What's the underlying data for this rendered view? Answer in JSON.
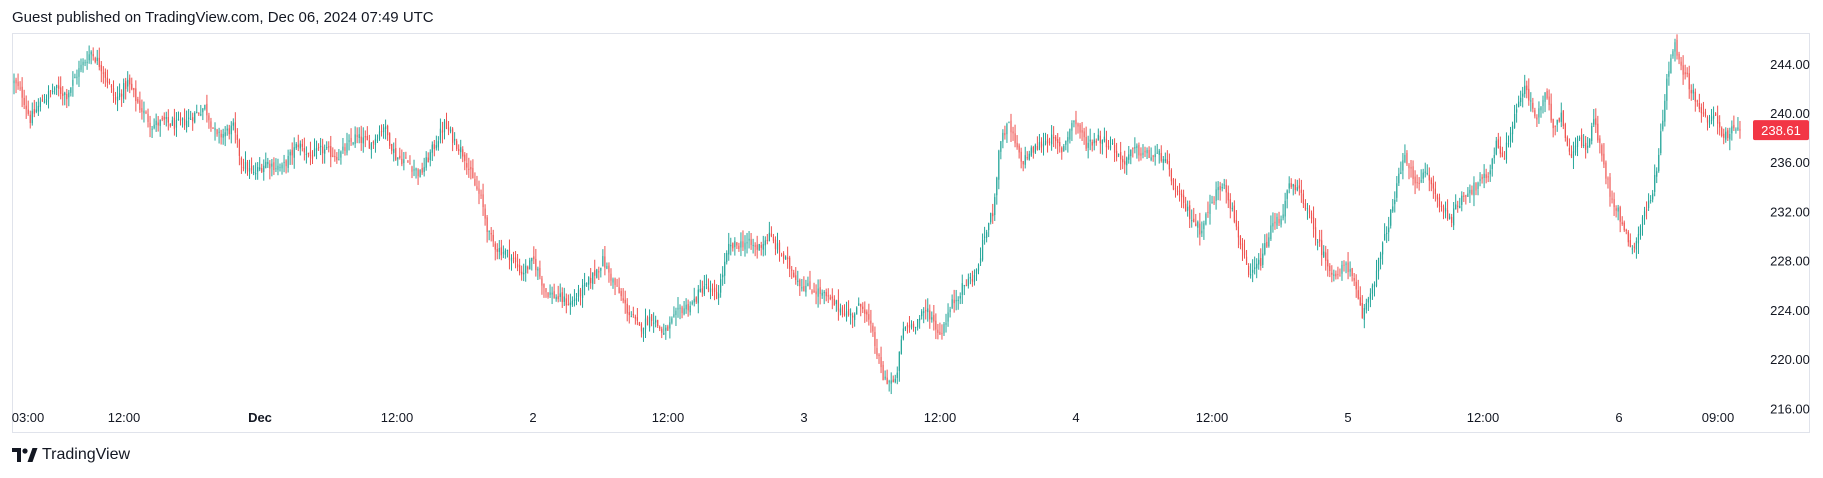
{
  "header": {
    "text": "Guest published on TradingView.com, Dec 06, 2024 07:49 UTC"
  },
  "footer": {
    "brand": "TradingView"
  },
  "colors": {
    "up": "#26a69a",
    "down": "#ef5350",
    "price_badge": "#f23645",
    "border": "#e0e3eb",
    "text": "#131722"
  },
  "chart_data": {
    "type": "candlestick",
    "title": "",
    "xlabel": "",
    "ylabel": "",
    "ylim": [
      214,
      246.5
    ],
    "y_ticks": [
      "244.00",
      "240.00",
      "236.00",
      "232.00",
      "228.00",
      "224.00",
      "220.00",
      "216.00"
    ],
    "x_ticks": [
      "03:00",
      "12:00",
      "Dec",
      "12:00",
      "2",
      "12:00",
      "3",
      "12:00",
      "4",
      "12:00",
      "5",
      "12:00",
      "6",
      "09:00"
    ],
    "last_price": "238.61",
    "grid": false,
    "series": [
      {
        "close_path": [
          [
            0,
            242.5
          ],
          [
            4,
            241.5
          ],
          [
            8,
            239.5
          ],
          [
            14,
            241.0
          ],
          [
            20,
            242.0
          ],
          [
            26,
            241.5
          ],
          [
            32,
            243.5
          ],
          [
            38,
            245.0
          ],
          [
            44,
            243.5
          ],
          [
            50,
            241.0
          ],
          [
            56,
            242.5
          ],
          [
            62,
            240.5
          ],
          [
            68,
            239.0
          ],
          [
            74,
            239.3
          ],
          [
            80,
            239.0
          ],
          [
            86,
            239.5
          ],
          [
            94,
            240.5
          ],
          [
            100,
            238.0
          ],
          [
            108,
            238.8
          ],
          [
            112,
            236.0
          ],
          [
            118,
            235.0
          ],
          [
            124,
            236.0
          ],
          [
            132,
            235.5
          ],
          [
            140,
            237.5
          ],
          [
            146,
            236.5
          ],
          [
            152,
            237.0
          ],
          [
            160,
            236.5
          ],
          [
            168,
            238.0
          ],
          [
            176,
            237.5
          ],
          [
            182,
            239.0
          ],
          [
            188,
            236.5
          ],
          [
            194,
            236.0
          ],
          [
            200,
            235.0
          ],
          [
            206,
            237.0
          ],
          [
            212,
            239.0
          ],
          [
            218,
            237.5
          ],
          [
            222,
            236.5
          ],
          [
            226,
            234.5
          ],
          [
            230,
            233.0
          ],
          [
            234,
            230.0
          ],
          [
            238,
            229.0
          ],
          [
            244,
            228.5
          ],
          [
            250,
            227.0
          ],
          [
            256,
            228.0
          ],
          [
            262,
            225.5
          ],
          [
            268,
            225.0
          ],
          [
            274,
            224.5
          ],
          [
            282,
            226.0
          ],
          [
            290,
            228.0
          ],
          [
            296,
            226.0
          ],
          [
            302,
            224.0
          ],
          [
            308,
            222.5
          ],
          [
            314,
            223.5
          ],
          [
            320,
            222.0
          ],
          [
            328,
            224.0
          ],
          [
            334,
            224.5
          ],
          [
            340,
            226.0
          ],
          [
            346,
            225.0
          ],
          [
            352,
            229.0
          ],
          [
            360,
            229.5
          ],
          [
            366,
            229.0
          ],
          [
            372,
            230.0
          ],
          [
            376,
            229.0
          ],
          [
            382,
            227.5
          ],
          [
            388,
            226.0
          ],
          [
            396,
            225.5
          ],
          [
            404,
            224.5
          ],
          [
            412,
            223.5
          ],
          [
            418,
            224.5
          ],
          [
            422,
            222.5
          ],
          [
            428,
            218.5
          ],
          [
            434,
            218.0
          ],
          [
            438,
            222.5
          ],
          [
            444,
            223.0
          ],
          [
            450,
            224.0
          ],
          [
            456,
            222.0
          ],
          [
            462,
            224.5
          ],
          [
            468,
            226.0
          ],
          [
            474,
            227.0
          ],
          [
            478,
            230.0
          ],
          [
            482,
            232.0
          ],
          [
            486,
            238.0
          ],
          [
            490,
            239.0
          ],
          [
            496,
            236.0
          ],
          [
            502,
            237.0
          ],
          [
            510,
            238.0
          ],
          [
            516,
            237.0
          ],
          [
            522,
            239.5
          ],
          [
            528,
            237.5
          ],
          [
            534,
            238.0
          ],
          [
            540,
            237.5
          ],
          [
            546,
            236.0
          ],
          [
            552,
            237.0
          ],
          [
            560,
            236.5
          ],
          [
            566,
            236.5
          ],
          [
            570,
            234.5
          ],
          [
            574,
            233.0
          ],
          [
            580,
            231.5
          ],
          [
            584,
            230.5
          ],
          [
            588,
            232.0
          ],
          [
            592,
            233.5
          ],
          [
            596,
            234.5
          ],
          [
            600,
            232.0
          ],
          [
            604,
            229.5
          ],
          [
            608,
            226.5
          ],
          [
            614,
            228.0
          ],
          [
            620,
            231.0
          ],
          [
            624,
            231.5
          ],
          [
            628,
            234.0
          ],
          [
            634,
            233.5
          ],
          [
            640,
            230.5
          ],
          [
            646,
            228.0
          ],
          [
            652,
            226.5
          ],
          [
            656,
            228.0
          ],
          [
            660,
            226.0
          ],
          [
            664,
            223.5
          ],
          [
            670,
            226.5
          ],
          [
            676,
            230.5
          ],
          [
            680,
            233.0
          ],
          [
            684,
            236.5
          ],
          [
            690,
            234.5
          ],
          [
            696,
            235.0
          ],
          [
            702,
            232.5
          ],
          [
            708,
            231.5
          ],
          [
            714,
            233.5
          ],
          [
            720,
            234.0
          ],
          [
            726,
            235.0
          ],
          [
            730,
            237.5
          ],
          [
            734,
            236.5
          ],
          [
            740,
            240.5
          ],
          [
            744,
            242.0
          ],
          [
            750,
            239.5
          ],
          [
            754,
            241.5
          ],
          [
            758,
            239.0
          ],
          [
            762,
            240.0
          ],
          [
            766,
            236.5
          ],
          [
            770,
            238.0
          ],
          [
            774,
            237.0
          ],
          [
            778,
            239.5
          ],
          [
            782,
            236.5
          ],
          [
            786,
            233.5
          ],
          [
            790,
            232.0
          ],
          [
            794,
            230.0
          ],
          [
            798,
            229.0
          ],
          [
            802,
            231.5
          ],
          [
            806,
            233.0
          ],
          [
            810,
            236.5
          ],
          [
            814,
            243.0
          ],
          [
            818,
            245.5
          ],
          [
            822,
            243.5
          ],
          [
            826,
            242.0
          ],
          [
            830,
            240.5
          ],
          [
            834,
            239.0
          ],
          [
            838,
            240.0
          ],
          [
            842,
            238.0
          ],
          [
            846,
            238.5
          ],
          [
            850,
            238.61
          ]
        ]
      }
    ]
  }
}
